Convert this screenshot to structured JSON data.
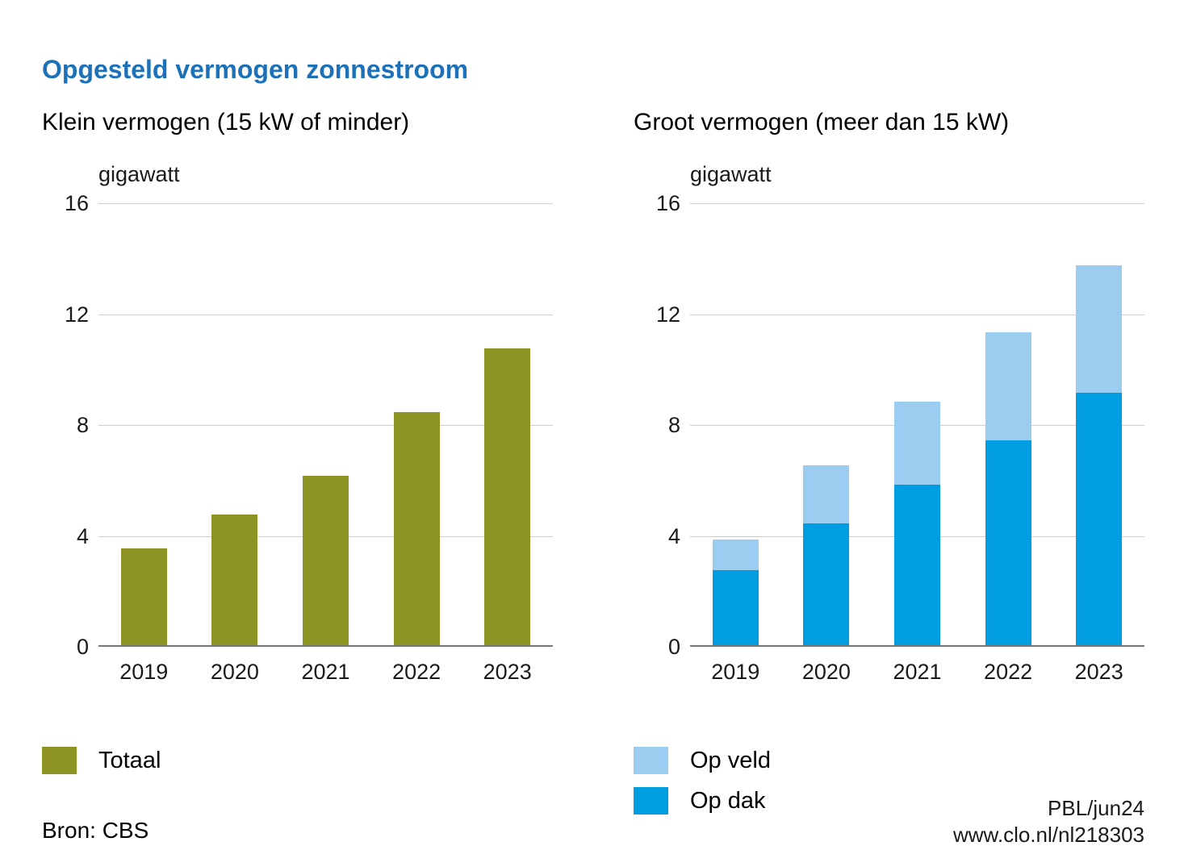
{
  "header": {
    "title": "Opgesteld vermogen zonnestroom"
  },
  "source": "Bron: CBS",
  "credit": {
    "line1": "PBL/jun24",
    "line2": "www.clo.nl/nl218303"
  },
  "colors": {
    "title_blue": "#1c71b8",
    "olive": "#8e9423",
    "dark_blue": "#009de0",
    "light_blue": "#9bcdf0",
    "gridline": "#cfcfcf",
    "axis": "#787878",
    "text": "#1a1a1a"
  },
  "chart_data": [
    {
      "type": "bar",
      "subtitle": "Klein vermogen (15 kW of minder)",
      "unit": "gigawatt",
      "stacked": false,
      "categories": [
        "2019",
        "2020",
        "2021",
        "2022",
        "2023"
      ],
      "series": [
        {
          "name": "Totaal",
          "color_key": "olive",
          "values": [
            3.5,
            4.7,
            6.1,
            8.4,
            10.7
          ]
        }
      ],
      "ylim": [
        0,
        16
      ],
      "yticks": [
        0,
        4,
        8,
        12,
        16
      ],
      "grid": true,
      "legend_position": "bottom-left",
      "legend": [
        {
          "label": "Totaal",
          "color_key": "olive"
        }
      ]
    },
    {
      "type": "bar",
      "subtitle": "Groot vermogen (meer dan 15 kW)",
      "unit": "gigawatt",
      "stacked": true,
      "categories": [
        "2019",
        "2020",
        "2021",
        "2022",
        "2023"
      ],
      "series": [
        {
          "name": "Op dak",
          "color_key": "dark_blue",
          "values": [
            2.7,
            4.4,
            5.8,
            7.4,
            9.1
          ]
        },
        {
          "name": "Op veld",
          "color_key": "light_blue",
          "values": [
            1.1,
            2.1,
            3.0,
            3.9,
            4.6
          ]
        }
      ],
      "totals": [
        3.8,
        6.5,
        8.8,
        11.3,
        13.7
      ],
      "ylim": [
        0,
        16
      ],
      "yticks": [
        0,
        4,
        12,
        8,
        16
      ],
      "grid": true,
      "legend_position": "bottom-left",
      "legend": [
        {
          "label": "Op veld",
          "color_key": "light_blue"
        },
        {
          "label": "Op dak",
          "color_key": "dark_blue"
        }
      ]
    }
  ]
}
